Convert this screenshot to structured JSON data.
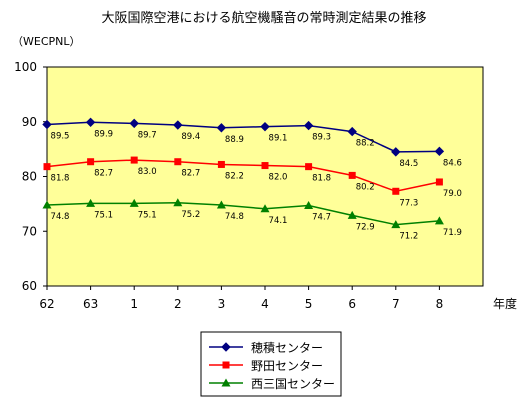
{
  "chart_data": {
    "type": "line",
    "title": "大阪国際空港における航空機騒音の常時測定結果の推移",
    "ylabel": "（WECPNL）",
    "xlabel": "年度",
    "categories": [
      "62",
      "63",
      "1",
      "2",
      "3",
      "4",
      "5",
      "6",
      "7",
      "8"
    ],
    "ylim": [
      60,
      100
    ],
    "yticks": [
      "60",
      "70",
      "80",
      "90",
      "100"
    ],
    "grid": false,
    "legend": "bottom",
    "series": [
      {
        "name": "穂積センター",
        "color": "#000080",
        "marker": "diamond",
        "values": [
          89.5,
          89.9,
          89.7,
          89.4,
          88.9,
          89.1,
          89.3,
          88.2,
          84.5,
          84.6
        ],
        "labels": [
          "89.5",
          "89.9",
          "89.7",
          "89.4",
          "88.9",
          "89.1",
          "89.3",
          "88.2",
          "84.5",
          "84.6"
        ]
      },
      {
        "name": "野田センター",
        "color": "#ff0000",
        "marker": "square",
        "values": [
          81.8,
          82.7,
          83.0,
          82.7,
          82.2,
          82.0,
          81.8,
          80.2,
          77.3,
          79.0
        ],
        "labels": [
          "81.8",
          "82.7",
          "83.0",
          "82.7",
          "82.2",
          "82.0",
          "81.8",
          "80.2",
          "77.3",
          "79.0"
        ]
      },
      {
        "name": "西三国センター",
        "color": "#008000",
        "marker": "triangle",
        "values": [
          74.8,
          75.1,
          75.1,
          75.2,
          74.8,
          74.1,
          74.7,
          72.9,
          71.2,
          71.9
        ],
        "labels": [
          "74.8",
          "75.1",
          "75.1",
          "75.2",
          "74.8",
          "74.1",
          "74.7",
          "72.9",
          "71.2",
          "71.9"
        ]
      }
    ],
    "colors": {
      "plot_bg": "#ffff99",
      "axis": "#000000"
    }
  }
}
